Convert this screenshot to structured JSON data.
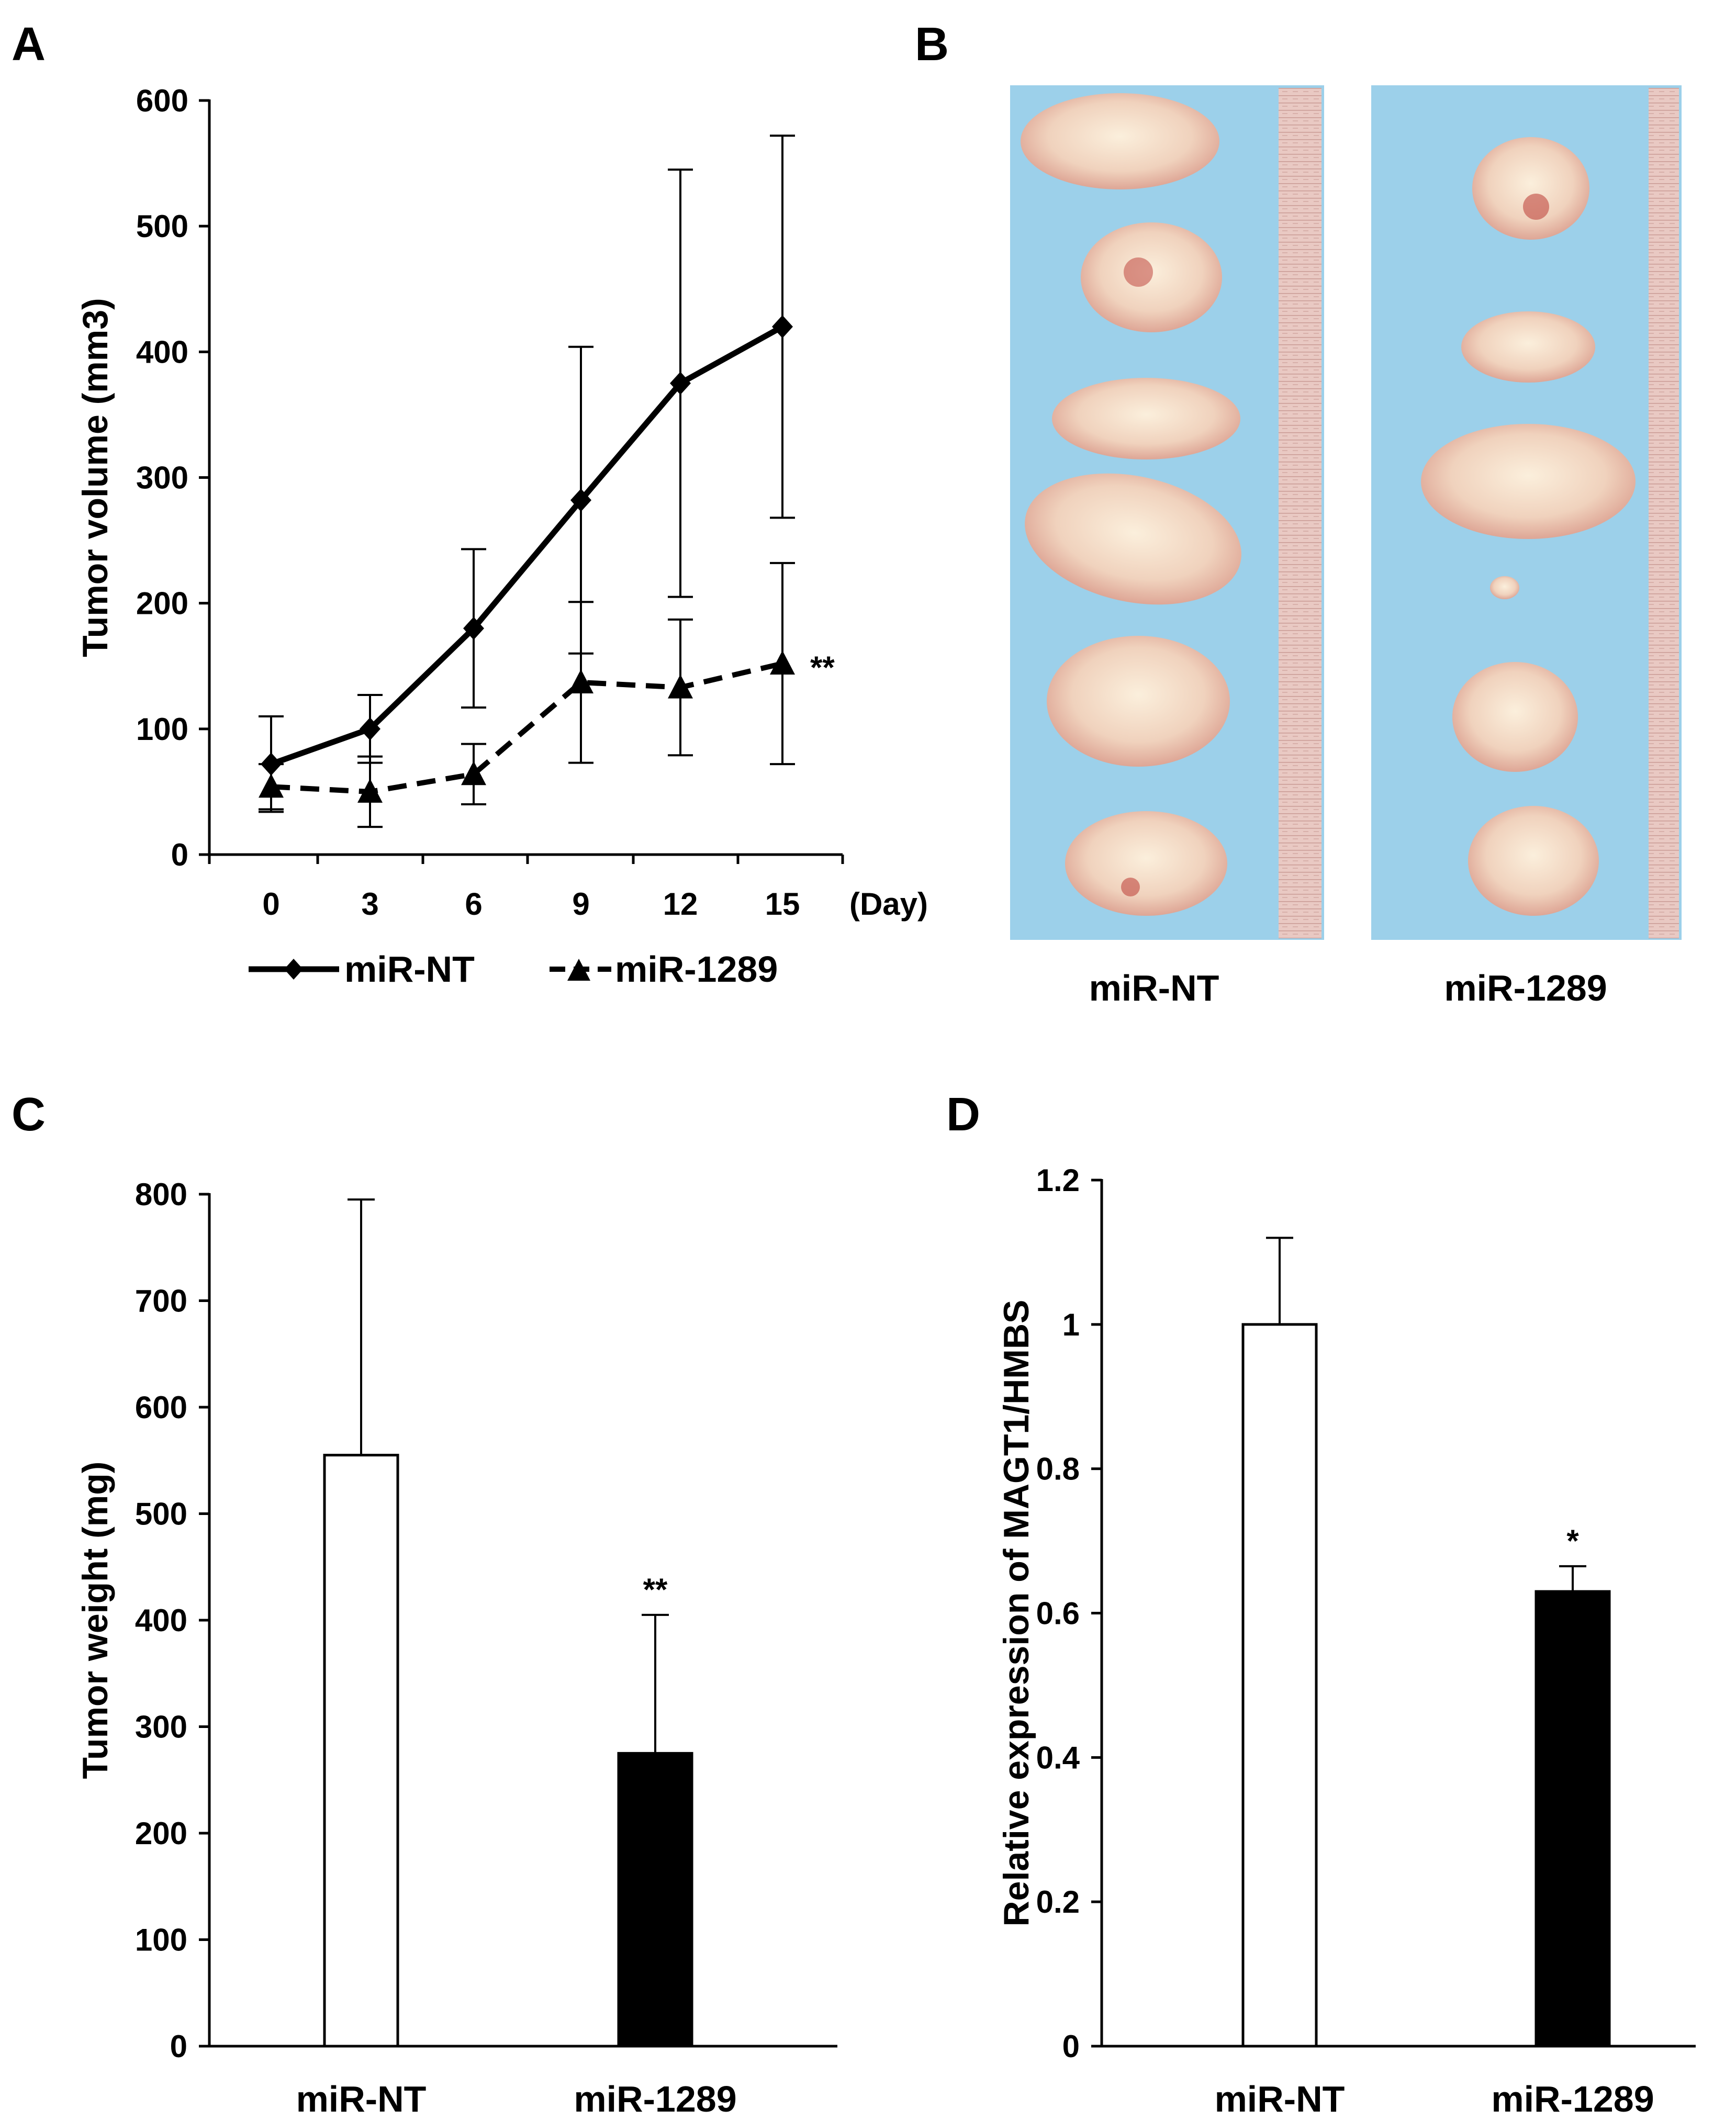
{
  "panels": {
    "A": {
      "letter": "A"
    },
    "B": {
      "letter": "B",
      "labels": [
        "miR-NT",
        "miR-1289"
      ],
      "description": "Excised tumor photographs beside ruler"
    },
    "C": {
      "letter": "C"
    },
    "D": {
      "letter": "D"
    }
  },
  "chart_data": [
    {
      "id": "A",
      "type": "line",
      "title": "",
      "xlabel": "(Day)",
      "ylabel": "Tumor volume (mm3)",
      "x": [
        0,
        3,
        6,
        9,
        12,
        15
      ],
      "x_tick_labels": [
        "0",
        "3",
        "6",
        "9",
        "12",
        "15"
      ],
      "ylim": [
        0,
        600
      ],
      "y_ticks": [
        0,
        100,
        200,
        300,
        400,
        500,
        600
      ],
      "series": [
        {
          "name": "miR-NT",
          "marker": "diamond",
          "line": "solid",
          "values": [
            72,
            100,
            180,
            282,
            375,
            420
          ],
          "errors": [
            38,
            27,
            63,
            122,
            170,
            152
          ]
        },
        {
          "name": "miR-1289",
          "marker": "triangle",
          "line": "dashed",
          "values": [
            54,
            50,
            64,
            137,
            133,
            152
          ],
          "errors": [
            18,
            28,
            24,
            64,
            54,
            80
          ]
        }
      ],
      "annotation": "**",
      "legend_position": "bottom"
    },
    {
      "id": "C",
      "type": "bar",
      "ylabel": "Tumor weight (mg)",
      "categories": [
        "miR-NT",
        "miR-1289"
      ],
      "values": [
        555,
        275
      ],
      "errors": [
        240,
        130
      ],
      "fills": [
        "#ffffff",
        "#000000"
      ],
      "ylim": [
        0,
        800
      ],
      "y_ticks": [
        0,
        100,
        200,
        300,
        400,
        500,
        600,
        700,
        800
      ],
      "annotations": [
        "",
        "**"
      ]
    },
    {
      "id": "D",
      "type": "bar",
      "ylabel": "Relative expression of MAGT1/HMBS",
      "categories": [
        "miR-NT",
        "miR-1289"
      ],
      "values": [
        1.0,
        0.63
      ],
      "errors": [
        0.12,
        0.035
      ],
      "fills": [
        "#ffffff",
        "#000000"
      ],
      "ylim": [
        0,
        1.2
      ],
      "y_ticks": [
        0,
        0.2,
        0.4,
        0.6,
        0.8,
        1,
        1.2
      ],
      "y_tick_labels": [
        "0",
        "0.2",
        "0.4",
        "0.6",
        "0.8",
        "1",
        "1.2"
      ],
      "annotations": [
        "",
        "*"
      ]
    }
  ]
}
